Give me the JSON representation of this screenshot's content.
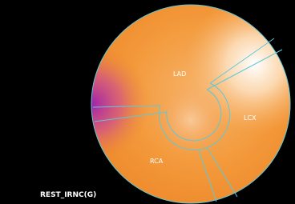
{
  "labels": {
    "lad": "LAD",
    "lcx": "LCX",
    "rca": "RCA"
  },
  "caption": "REST_IRNC(G)"
}
